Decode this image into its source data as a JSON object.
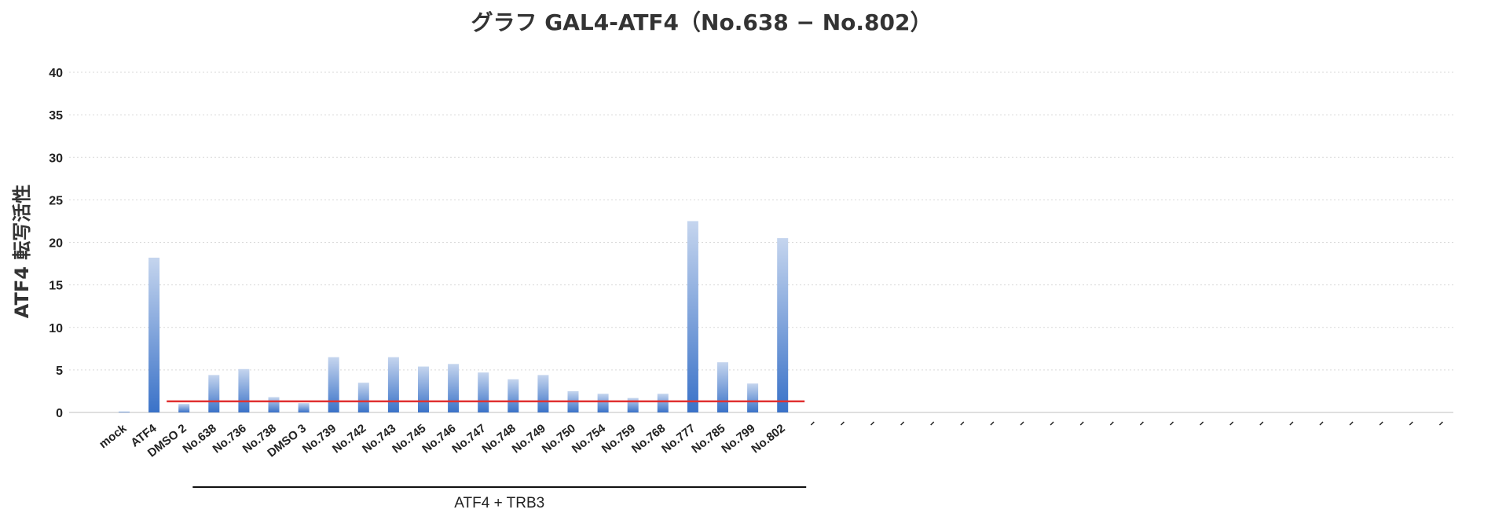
{
  "chart_data": {
    "type": "bar",
    "title": "グラフ GAL4-ATF4（No.638 − No.802）",
    "ylabel": "ATF4 転写活性",
    "xlabel": "",
    "ylim": [
      0,
      40
    ],
    "yticks": [
      0,
      5,
      10,
      15,
      20,
      25,
      30,
      35,
      40
    ],
    "categories": [
      "mock",
      "ATF4",
      "DMSO 2",
      "No.638",
      "No.736",
      "No.738",
      "DMSO 3",
      "No.739",
      "No.742",
      "No.743",
      "No.745",
      "No.746",
      "No.747",
      "No.748",
      "No.749",
      "No.750",
      "No.754",
      "No.759",
      "No.768",
      "No.777",
      "No.785",
      "No.799",
      "No.802",
      "",
      "",
      "",
      "",
      "",
      "",
      "",
      "",
      "",
      "",
      "",
      "",
      "",
      "",
      "",
      "",
      "",
      "",
      "",
      "",
      "",
      ""
    ],
    "values": [
      0.1,
      18.2,
      1.0,
      4.4,
      5.1,
      1.8,
      1.1,
      6.5,
      3.5,
      6.5,
      5.4,
      5.7,
      4.7,
      3.9,
      4.4,
      2.5,
      2.2,
      1.7,
      2.2,
      22.5,
      5.9,
      3.4,
      20.5,
      null,
      null,
      null,
      null,
      null,
      null,
      null,
      null,
      null,
      null,
      null,
      null,
      null,
      null,
      null,
      null,
      null,
      null,
      null,
      null,
      null,
      null
    ],
    "reference_line": {
      "y": 1.3,
      "color": "#e03030"
    },
    "group_label": "ATF4 + TRB3",
    "grid": true,
    "legend": "none",
    "bar_color_top": "#c5d5ee",
    "bar_color_bottom": "#3a72c8"
  }
}
